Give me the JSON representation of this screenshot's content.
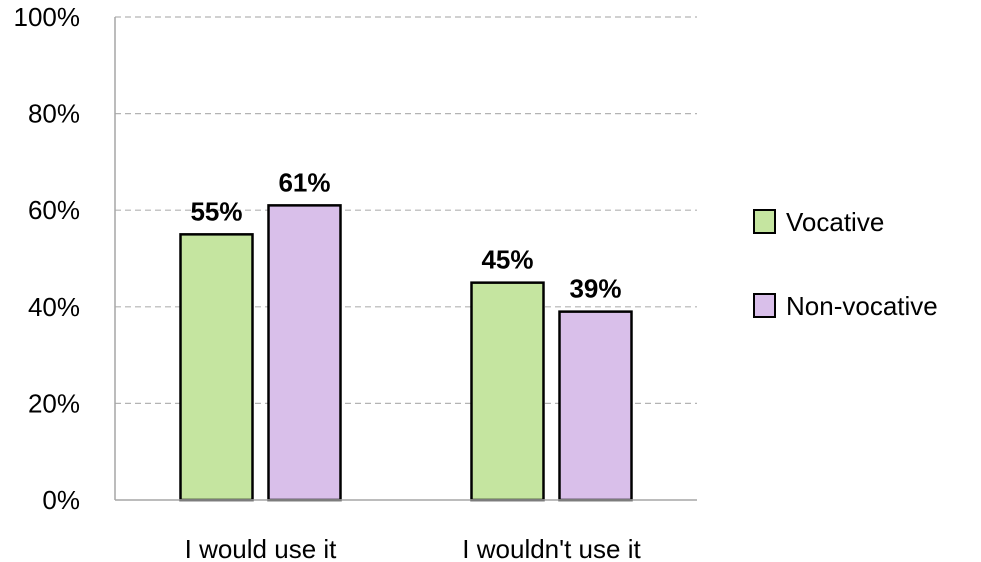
{
  "chart_data": {
    "type": "bar",
    "categories": [
      "I would use it",
      "I wouldn't use it"
    ],
    "series": [
      {
        "name": "Vocative",
        "values": [
          55,
          45
        ],
        "labels": [
          "55%",
          "45%"
        ],
        "color": "#c5e5a0"
      },
      {
        "name": "Non-vocative",
        "values": [
          61,
          39
        ],
        "labels": [
          "61%",
          "39%"
        ],
        "color": "#d9bfea"
      }
    ],
    "ylim": [
      0,
      100
    ],
    "yticks": [
      0,
      20,
      40,
      60,
      80,
      100
    ],
    "ytick_labels": [
      "0%",
      "20%",
      "40%",
      "60%",
      "80%",
      "100%"
    ],
    "grid": true,
    "legend_position": "right"
  }
}
